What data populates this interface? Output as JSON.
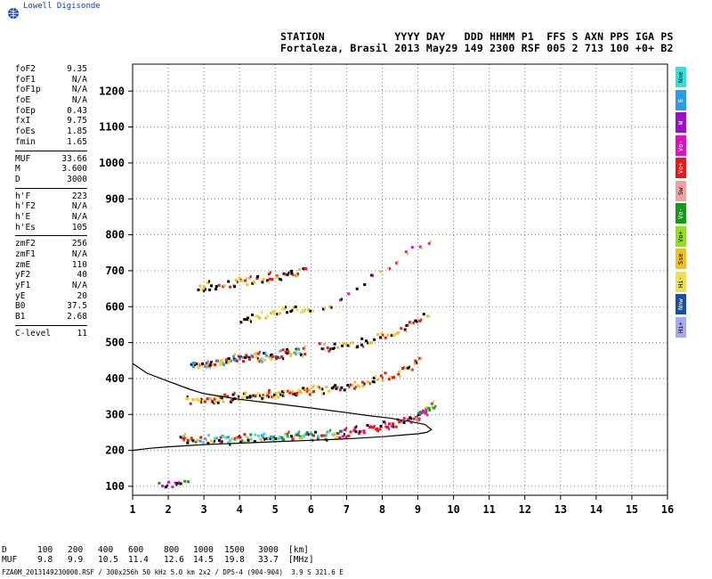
{
  "brand": {
    "name": "Lowell Digisonde",
    "logo_icon": "globe-icon"
  },
  "header": {
    "labels_line": "STATION           YYYY DAY   DDD HHMM P1  FFS S AXN PPS IGA PS",
    "values_line": "Fortaleza, Brasil 2013 May29 149 2300 RSF 005 2 713 100 +0+ B2"
  },
  "parameters": [
    {
      "label": "foF2",
      "value": "9.35"
    },
    {
      "label": "foF1",
      "value": "N/A"
    },
    {
      "label": "foF1p",
      "value": "N/A"
    },
    {
      "label": "foE",
      "value": "N/A"
    },
    {
      "label": "foEp",
      "value": "0.43"
    },
    {
      "label": "fxI",
      "value": "9.75"
    },
    {
      "label": "foEs",
      "value": "1.85"
    },
    {
      "label": "fmin",
      "value": "1.65"
    },
    {
      "separator": true
    },
    {
      "label": "MUF",
      "value": "33.66"
    },
    {
      "label": "M",
      "value": "3.600"
    },
    {
      "label": "D",
      "value": "3000"
    },
    {
      "separator": true
    },
    {
      "label": "h'F",
      "value": "223"
    },
    {
      "label": "h'F2",
      "value": "N/A"
    },
    {
      "label": "h'E",
      "value": "N/A"
    },
    {
      "label": "h'Es",
      "value": "105"
    },
    {
      "separator": true
    },
    {
      "label": "zmF2",
      "value": "256"
    },
    {
      "label": "zmF1",
      "value": "N/A"
    },
    {
      "label": "zmE",
      "value": "110"
    },
    {
      "label": "yF2",
      "value": "40"
    },
    {
      "label": "yF1",
      "value": "N/A"
    },
    {
      "label": "yE",
      "value": "20"
    },
    {
      "label": "B0",
      "value": "37.5"
    },
    {
      "label": "B1",
      "value": "2.68"
    },
    {
      "separator": true
    },
    {
      "label": "C-level",
      "value": "11"
    }
  ],
  "legend": [
    {
      "label": "Nne",
      "color": "#30e0e0"
    },
    {
      "label": "E",
      "color": "#2a9de8"
    },
    {
      "label": "W",
      "color": "#9a10c8"
    },
    {
      "label": "Vo-",
      "color": "#e010c0"
    },
    {
      "label": "Vo+",
      "color": "#e81818"
    },
    {
      "label": "Sw",
      "color": "#f0a0a0"
    },
    {
      "label": "Vo-",
      "color": "#189818"
    },
    {
      "label": "Vo+",
      "color": "#90e020"
    },
    {
      "label": "Sse",
      "color": "#f0c020"
    },
    {
      "label": "Hi-",
      "color": "#f0e050"
    },
    {
      "label": "Nnw",
      "color": "#1850a0"
    },
    {
      "label": "Hi+",
      "color": "#a8a8f0"
    }
  ],
  "muf_table": {
    "rows": [
      {
        "name": "D",
        "cells": [
          "100",
          "200",
          "400",
          "600",
          "800",
          "1000",
          "1500",
          "3000"
        ],
        "unit": "[km]"
      },
      {
        "name": "MUF",
        "cells": [
          "9.8",
          "9.9",
          "10.5",
          "11.4",
          "12.6",
          "14.5",
          "19.8",
          "33.7"
        ],
        "unit": "[MHz]"
      }
    ]
  },
  "footer": "FZA0M_2013149230000.RSF / 300x256h 50 kHz 5.0 km 2x2 / DPS-4 (904-904)  3.9 S 321.6 E",
  "chart_data": {
    "type": "scatter",
    "title": "",
    "xlabel": "",
    "ylabel": "",
    "xlim": [
      1,
      16
    ],
    "ylim": [
      75,
      1275
    ],
    "x_ticks": [
      1,
      2,
      3,
      4,
      5,
      6,
      7,
      8,
      9,
      10,
      11,
      12,
      13,
      14,
      15,
      16
    ],
    "y_ticks": [
      100,
      200,
      300,
      400,
      500,
      600,
      700,
      800,
      900,
      1000,
      1100,
      1200
    ],
    "grid": "dotted",
    "profile_curve": {
      "name": "",
      "color": "#000000",
      "points": [
        [
          1,
          442
        ],
        [
          1.4,
          415
        ],
        [
          2,
          392
        ],
        [
          2.6,
          370
        ],
        [
          3,
          358
        ],
        [
          4,
          342
        ],
        [
          5,
          330
        ],
        [
          6,
          318
        ],
        [
          7,
          305
        ],
        [
          7.6,
          297
        ],
        [
          8.2,
          290
        ],
        [
          8.8,
          280
        ],
        [
          9.2,
          272
        ],
        [
          9.38,
          258
        ],
        [
          9.25,
          250
        ],
        [
          9,
          246
        ],
        [
          8.5,
          242
        ],
        [
          8,
          238
        ],
        [
          7,
          232
        ],
        [
          6,
          228
        ],
        [
          5,
          224
        ],
        [
          4,
          220
        ],
        [
          3,
          216
        ],
        [
          2,
          210
        ],
        [
          1.5,
          206
        ],
        [
          1,
          200
        ]
      ]
    },
    "traces": [
      {
        "name": "Es trace",
        "x": [
          1.7,
          2.5
        ],
        "y": [
          108,
          112
        ],
        "colors": [
          "#e010c0",
          "#189818",
          "#000000"
        ],
        "density": 10
      },
      {
        "name": "F1 trace",
        "x": [
          2.3,
          6.8
        ],
        "y": [
          232,
          246
        ],
        "colors": [
          "#2a9de8",
          "#30e0e0",
          "#e81818",
          "#000000",
          "#f0c020",
          "#189818"
        ],
        "density": 90
      },
      {
        "name": "F2 o-trace",
        "x": [
          6.8,
          9.0
        ],
        "y": [
          248,
          292
        ],
        "colors": [
          "#e81818",
          "#e81818",
          "#e010c0",
          "#000000"
        ],
        "density": 40
      },
      {
        "name": "F2 x-trace",
        "x": [
          8.9,
          9.4
        ],
        "y": [
          290,
          330
        ],
        "colors": [
          "#e010c0",
          "#189818",
          "#90e020"
        ],
        "density": 18
      },
      {
        "name": "2F trace",
        "x": [
          2.5,
          6.0
        ],
        "y": [
          338,
          370
        ],
        "colors": [
          "#f0c020",
          "#f0e050",
          "#000000",
          "#e81818"
        ],
        "density": 75
      },
      {
        "name": "2F upper",
        "x": [
          6.0,
          9.0
        ],
        "y": [
          370,
          450
        ],
        "colors": [
          "#f0c020",
          "#000000",
          "#e81818"
        ],
        "density": 40
      },
      {
        "name": "3F trace",
        "x": [
          2.6,
          5.8
        ],
        "y": [
          440,
          480
        ],
        "colors": [
          "#e81818",
          "#000000",
          "#f0c020",
          "#2a9de8"
        ],
        "density": 70
      },
      {
        "name": "3F upper",
        "x": [
          6.2,
          9.2
        ],
        "y": [
          490,
          580
        ],
        "colors": [
          "#f0c020",
          "#000000",
          "#e81818"
        ],
        "density": 40
      },
      {
        "name": "4F trace",
        "x": [
          4.0,
          6.0
        ],
        "y": [
          570,
          600
        ],
        "colors": [
          "#000000",
          "#f0e050",
          "#f0c020"
        ],
        "density": 30
      },
      {
        "name": "5F trace",
        "x": [
          2.8,
          5.8
        ],
        "y": [
          655,
          700
        ],
        "colors": [
          "#f0c020",
          "#000000",
          "#e81818"
        ],
        "density": 45
      },
      {
        "name": "scatter",
        "x": [
          6.3,
          9.3
        ],
        "y": [
          600,
          790
        ],
        "colors": [
          "#f0c020",
          "#000000",
          "#e010c0"
        ],
        "density": 14
      }
    ]
  }
}
